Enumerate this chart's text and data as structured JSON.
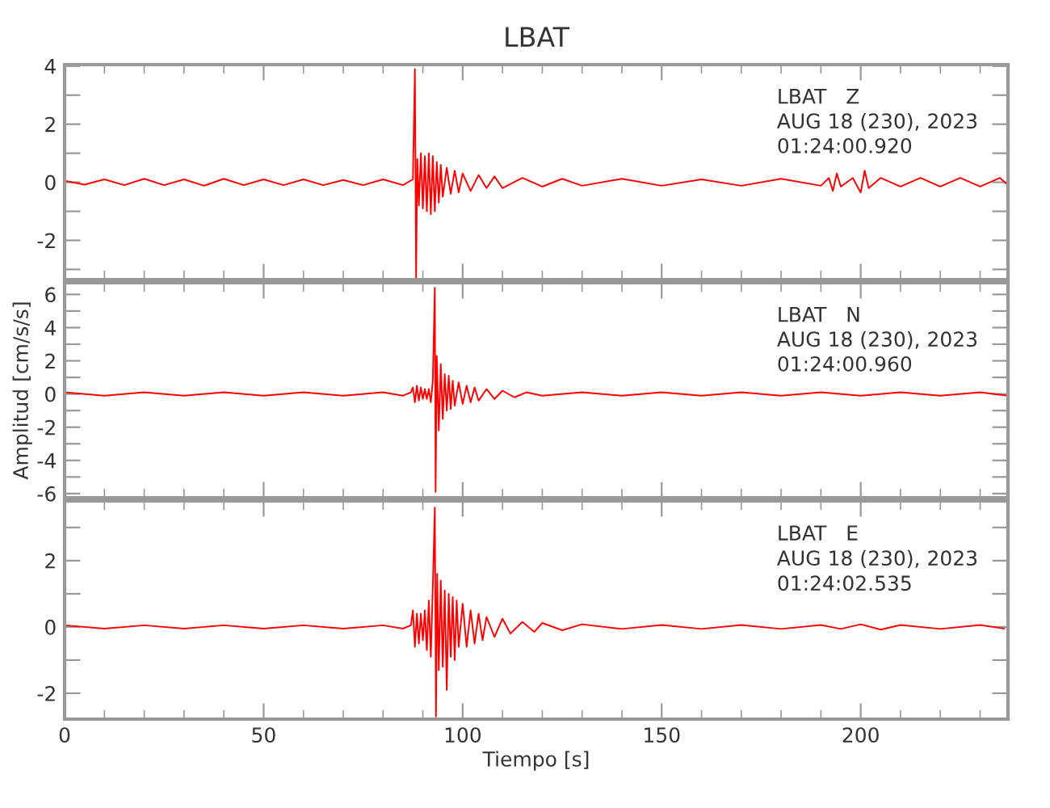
{
  "chart_data": [
    {
      "type": "line",
      "title": "LBAT",
      "annotations": [
        "LBAT   Z",
        "AUG 18 (230), 2023",
        "01:24:00.920"
      ],
      "tick_labels": "y",
      "grid": false,
      "xlim": [
        0,
        237
      ],
      "xticks": [
        0,
        50,
        100,
        150,
        200
      ],
      "ylim": [
        -3.35,
        4.05
      ],
      "yticks": [
        {
          "value": -3,
          "label": null
        },
        -2,
        {
          "value": -1,
          "label": null
        },
        0,
        {
          "value": 1,
          "label": null
        },
        2,
        {
          "value": 3,
          "label": null
        },
        4
      ],
      "series": [
        {
          "color": "#ff0000",
          "x": [
            0,
            5,
            10,
            15,
            20,
            25,
            30,
            35,
            40,
            45,
            50,
            55,
            60,
            65,
            70,
            75,
            80,
            85,
            87.5,
            88,
            88.3,
            88.6,
            89,
            89.5,
            90,
            90.5,
            91,
            91.5,
            92,
            92.5,
            93,
            93.5,
            94,
            94.5,
            95,
            96,
            97,
            98,
            99,
            100,
            102,
            104,
            106,
            108,
            110,
            115,
            120,
            125,
            130,
            140,
            150,
            160,
            170,
            180,
            190,
            192,
            193,
            194,
            195,
            198,
            200,
            201,
            202,
            205,
            210,
            215,
            220,
            225,
            230,
            235,
            237
          ],
          "values": [
            0.05,
            -0.08,
            0.1,
            -0.1,
            0.12,
            -0.1,
            0.1,
            -0.12,
            0.12,
            -0.1,
            0.1,
            -0.1,
            0.1,
            -0.1,
            0.08,
            -0.1,
            0.1,
            -0.1,
            0.1,
            3.9,
            -3.3,
            0.8,
            -0.8,
            1.0,
            -0.9,
            0.9,
            -1.0,
            1.0,
            -1.1,
            0.9,
            -1.0,
            0.7,
            -0.7,
            0.6,
            -0.5,
            0.5,
            -0.4,
            0.4,
            -0.35,
            0.3,
            -0.3,
            0.25,
            -0.2,
            0.2,
            -0.2,
            0.15,
            -0.15,
            0.12,
            -0.12,
            0.12,
            -0.12,
            0.1,
            -0.12,
            0.12,
            -0.12,
            0.15,
            -0.3,
            0.3,
            -0.15,
            0.15,
            -0.35,
            0.4,
            -0.2,
            0.15,
            -0.15,
            0.15,
            -0.15,
            0.15,
            -0.15,
            0.15,
            -0.1
          ]
        }
      ]
    },
    {
      "type": "line",
      "ylabel": "Amplitud [cm/s/s]",
      "annotations": [
        "LBAT   N",
        "AUG 18 (230), 2023",
        "01:24:00.960"
      ],
      "tick_labels": "y",
      "grid": false,
      "xlim": [
        0,
        237
      ],
      "xticks": [
        0,
        50,
        100,
        150,
        200
      ],
      "ylim": [
        -6.25,
        6.7
      ],
      "yticks": [
        -6,
        {
          "value": -5,
          "label": null
        },
        -4,
        {
          "value": -3,
          "label": null
        },
        -2,
        {
          "value": -1,
          "label": null
        },
        0,
        {
          "value": 1,
          "label": null
        },
        2,
        {
          "value": 3,
          "label": null
        },
        4,
        {
          "value": 5,
          "label": null
        },
        6
      ],
      "series": [
        {
          "color": "#ff0000",
          "x": [
            0,
            10,
            20,
            30,
            40,
            50,
            60,
            70,
            80,
            85,
            87,
            87.5,
            88,
            88.5,
            89,
            89.5,
            90,
            90.5,
            91,
            91.5,
            92,
            92.5,
            93,
            93.2,
            93.5,
            94,
            94.5,
            95,
            95.5,
            96,
            96.5,
            97,
            97.5,
            98,
            99,
            100,
            101,
            102,
            103,
            104,
            106,
            108,
            110,
            113,
            116,
            120,
            130,
            140,
            150,
            160,
            170,
            180,
            190,
            200,
            210,
            220,
            230,
            237
          ],
          "values": [
            0.1,
            -0.1,
            0.1,
            -0.1,
            0.1,
            -0.1,
            0.1,
            -0.1,
            0.1,
            -0.1,
            0.1,
            0.4,
            -0.5,
            0.5,
            -0.4,
            0.4,
            -0.3,
            0.3,
            -0.3,
            0.3,
            -0.5,
            0.8,
            6.4,
            -5.9,
            2.3,
            -2.2,
            1.8,
            -1.5,
            1.2,
            -1.0,
            1.1,
            -0.9,
            0.8,
            -0.7,
            0.7,
            -0.6,
            0.5,
            -0.5,
            0.4,
            -0.4,
            0.3,
            -0.3,
            0.2,
            -0.2,
            0.1,
            -0.1,
            0.1,
            -0.1,
            0.1,
            -0.1,
            0.1,
            -0.1,
            0.1,
            -0.1,
            0.1,
            -0.1,
            0.1,
            -0.1
          ]
        }
      ]
    },
    {
      "type": "line",
      "xlabel": "Tiempo [s]",
      "annotations": [
        "LBAT   E",
        "AUG 18 (230), 2023",
        "01:24:02.535"
      ],
      "grid": false,
      "xlim": [
        0,
        237
      ],
      "xticks": [
        0,
        50,
        100,
        150,
        200
      ],
      "ylim": [
        -2.78,
        3.8
      ],
      "yticks": [
        -2,
        {
          "value": -1,
          "label": null
        },
        0,
        {
          "value": 1,
          "label": null
        },
        2,
        {
          "value": 3,
          "label": null
        }
      ],
      "series": [
        {
          "color": "#ff0000",
          "x": [
            0,
            10,
            20,
            30,
            40,
            50,
            60,
            70,
            80,
            85,
            87,
            87.5,
            88,
            88.5,
            89,
            89.5,
            90,
            90.5,
            91,
            91.5,
            92,
            92.5,
            93,
            93.3,
            93.6,
            94,
            94.5,
            95,
            95.5,
            96,
            96.5,
            97,
            97.5,
            98,
            98.5,
            99,
            100,
            101,
            102,
            103,
            104,
            105,
            106,
            108,
            110,
            112,
            115,
            118,
            120,
            125,
            130,
            140,
            150,
            160,
            170,
            180,
            190,
            195,
            200,
            205,
            210,
            220,
            230,
            236
          ],
          "values": [
            0.05,
            -0.05,
            0.05,
            -0.05,
            0.05,
            -0.05,
            0.05,
            -0.05,
            0.05,
            -0.05,
            0.05,
            0.5,
            -0.6,
            0.4,
            -0.5,
            0.4,
            -0.4,
            0.5,
            -0.7,
            0.8,
            -0.9,
            1.2,
            3.6,
            -2.7,
            1.6,
            -1.3,
            1.4,
            -1.2,
            1.1,
            -1.9,
            1.0,
            -0.9,
            0.9,
            -1.0,
            0.8,
            -0.6,
            0.7,
            -0.6,
            0.5,
            -0.5,
            0.4,
            -0.4,
            0.3,
            -0.3,
            0.25,
            -0.2,
            0.15,
            -0.15,
            0.12,
            -0.1,
            0.08,
            -0.06,
            0.06,
            -0.06,
            0.06,
            -0.06,
            0.06,
            -0.06,
            0.08,
            -0.08,
            0.06,
            -0.06,
            0.06,
            -0.05
          ]
        }
      ]
    }
  ]
}
